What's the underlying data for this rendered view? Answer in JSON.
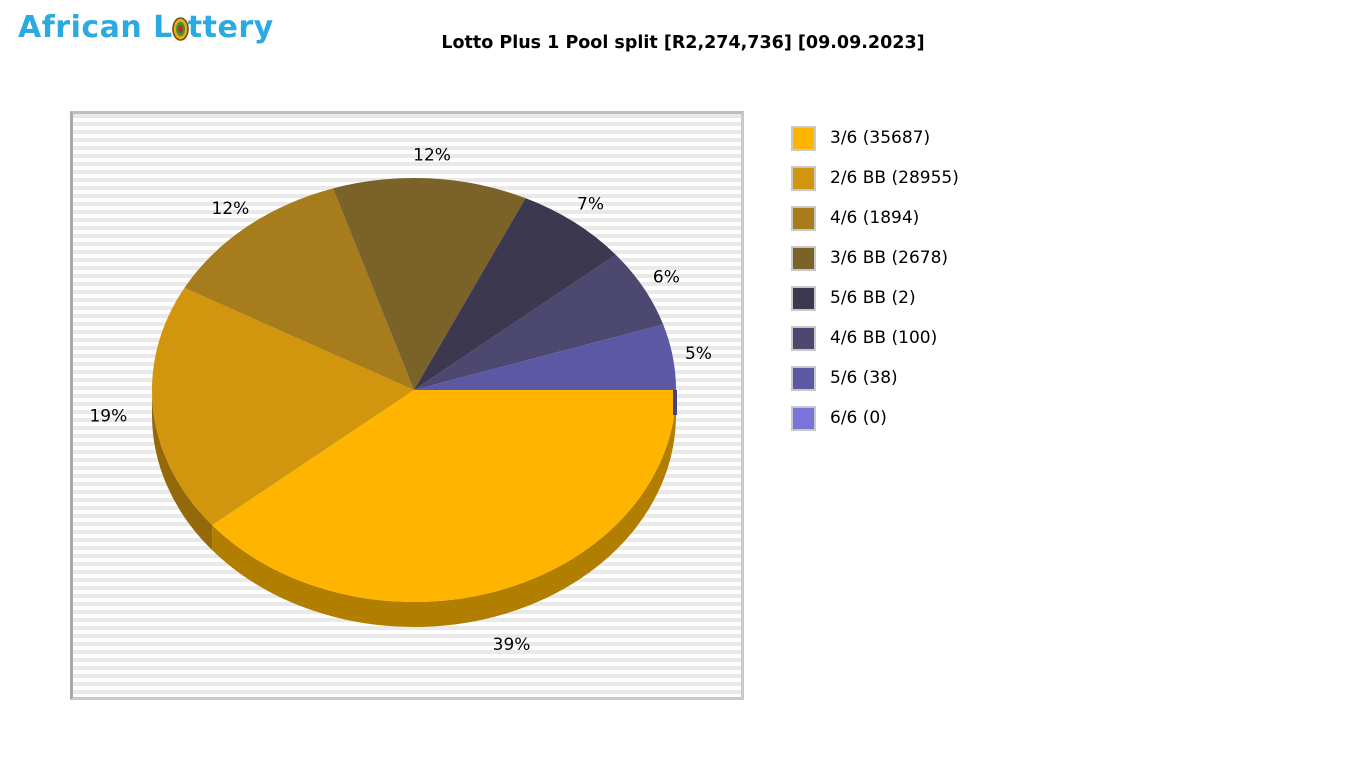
{
  "logo": {
    "text_before_ball": "African L",
    "text_after_ball": "ttery",
    "color": "#2BA9E1",
    "ball_icon": "lottery-ball"
  },
  "chart_data": {
    "type": "pie",
    "is_3d": true,
    "title": "Lotto Plus 1 Pool split [R2,274,736] [09.09.2023]",
    "pool_total_text": "R2,274,736",
    "draw_date_text": "09.09.2023",
    "start_angle_deg": 0,
    "direction": "clockwise",
    "legend_position": "right",
    "plot_background_stripes": [
      "#E9E9E9",
      "#FFFFFF"
    ],
    "slices": [
      {
        "label": "3/6",
        "count": 35687,
        "percent": 39,
        "percent_label": "39%",
        "color": "#FFB400",
        "side_color": "#B27E00",
        "legend_label": "3/6 (35687)"
      },
      {
        "label": "2/6 BB",
        "count": 28955,
        "percent": 19,
        "percent_label": "19%",
        "color": "#D1960E",
        "side_color": "#93690A",
        "legend_label": "2/6 BB (28955)"
      },
      {
        "label": "4/6",
        "count": 1894,
        "percent": 12,
        "percent_label": "12%",
        "color": "#A67C1C",
        "side_color": "#745713",
        "legend_label": "4/6 (1894)"
      },
      {
        "label": "3/6 BB",
        "count": 2678,
        "percent": 12,
        "percent_label": "12%",
        "color": "#7A6228",
        "side_color": "#55441C",
        "legend_label": "3/6 BB (2678)"
      },
      {
        "label": "5/6 BB",
        "count": 2,
        "percent": 7,
        "percent_label": "7%",
        "color": "#3C3850",
        "side_color": "#2A2738",
        "legend_label": "5/6 BB (2)"
      },
      {
        "label": "4/6 BB",
        "count": 100,
        "percent": 6,
        "percent_label": "6%",
        "color": "#4C4870",
        "side_color": "#35324E",
        "legend_label": "4/6 BB (100)"
      },
      {
        "label": "5/6",
        "count": 38,
        "percent": 5,
        "percent_label": "5%",
        "color": "#5C58A4",
        "side_color": "#403D72",
        "legend_label": "5/6 (38)"
      },
      {
        "label": "6/6",
        "count": 0,
        "percent": 0,
        "percent_label": "0%",
        "color": "#7A73D9",
        "side_color": "#46427E",
        "legend_label": "6/6 (0)"
      }
    ]
  }
}
